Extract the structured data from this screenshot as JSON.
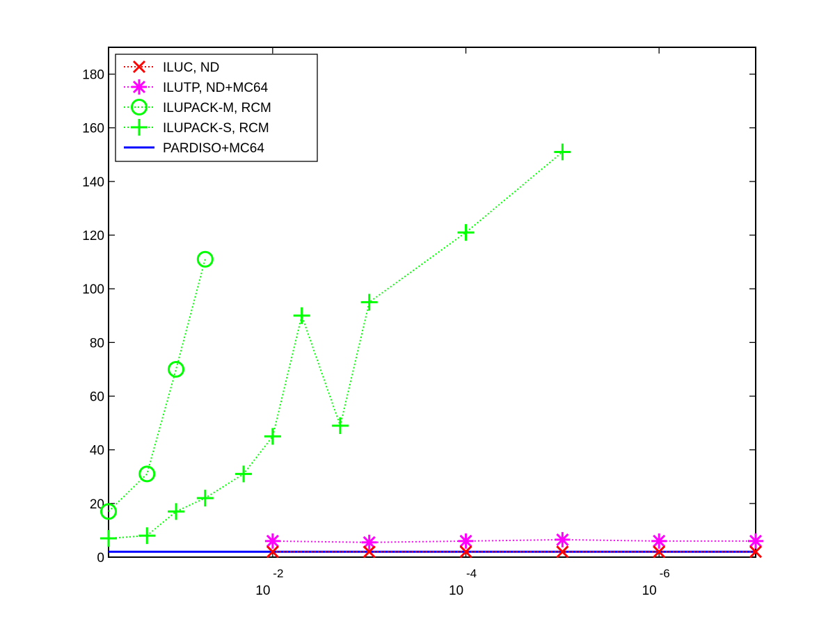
{
  "chart_data": {
    "type": "line",
    "title": "",
    "xlabel": "",
    "ylabel": "",
    "xscale": "log",
    "x_direction": "decreasing",
    "xlim": [
      0.5,
      1e-07
    ],
    "ylim": [
      0,
      190
    ],
    "y_ticks": [
      0,
      20,
      40,
      60,
      80,
      100,
      120,
      140,
      160,
      180
    ],
    "x_ticks": [
      {
        "value": 0.01,
        "base": "10",
        "exponent": "-2"
      },
      {
        "value": 0.0001,
        "base": "10",
        "exponent": "-4"
      },
      {
        "value": 1e-06,
        "base": "10",
        "exponent": "-6"
      }
    ],
    "grid": false,
    "legend_position": "top-left",
    "series": [
      {
        "name": "ILUC,  ND",
        "color": "#ff0000",
        "marker": "x",
        "line_style": "dotted",
        "points": [
          [
            0.01,
            2
          ],
          [
            0.001,
            2
          ],
          [
            0.0001,
            2
          ],
          [
            1e-05,
            2
          ],
          [
            1e-06,
            2
          ],
          [
            1e-07,
            2
          ]
        ]
      },
      {
        "name": "ILUTP,  ND+MC64",
        "color": "#ff00ff",
        "marker": "star",
        "line_style": "dotted",
        "points": [
          [
            0.01,
            6
          ],
          [
            0.001,
            5.5
          ],
          [
            0.0001,
            6
          ],
          [
            1e-05,
            6.5
          ],
          [
            1e-06,
            6
          ],
          [
            1e-07,
            6
          ]
        ]
      },
      {
        "name": "ILUPACK-M, RCM",
        "color": "#00ff00",
        "marker": "circle",
        "line_style": "dotted",
        "points": [
          [
            0.5,
            17
          ],
          [
            0.2,
            31
          ],
          [
            0.1,
            70
          ],
          [
            0.05,
            111
          ]
        ]
      },
      {
        "name": "ILUPACK-S, RCM",
        "color": "#00ff00",
        "marker": "plus",
        "line_style": "dotted",
        "points": [
          [
            0.5,
            7
          ],
          [
            0.2,
            8
          ],
          [
            0.1,
            17
          ],
          [
            0.05,
            22
          ],
          [
            0.02,
            31
          ],
          [
            0.01,
            45
          ],
          [
            0.005,
            90
          ],
          [
            0.002,
            49
          ],
          [
            0.001,
            95
          ],
          [
            0.0001,
            121
          ],
          [
            1e-05,
            151
          ]
        ]
      },
      {
        "name": "PARDISO+MC64",
        "color": "#0000ff",
        "marker": "none",
        "line_style": "solid",
        "points": [
          [
            0.5,
            2
          ],
          [
            1e-07,
            2
          ]
        ]
      }
    ]
  }
}
